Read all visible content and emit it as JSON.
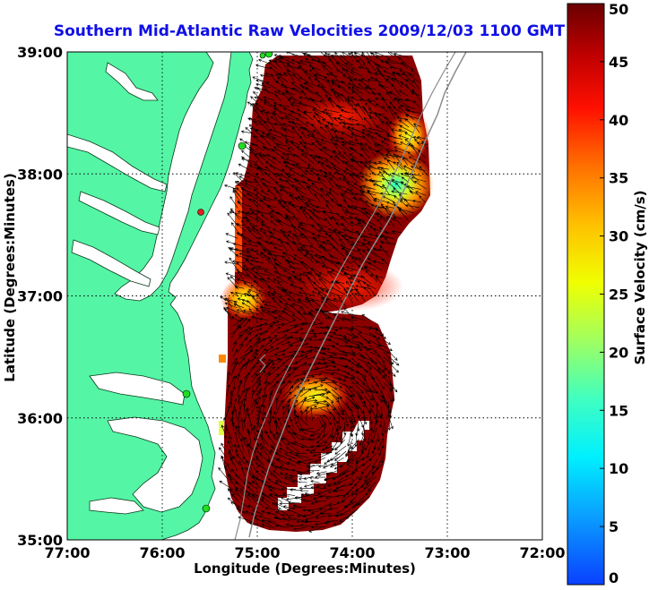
{
  "chart_data": {
    "type": "heatmap",
    "title": "Southern Mid-Atlantic Raw Velocities 2009/12/03 1100 GMT",
    "xlabel": "Longitude (Degrees:Minutes)",
    "ylabel": "Latitude (Degrees:Minutes)",
    "xlim": [
      -77,
      -72
    ],
    "ylim": [
      35,
      39
    ],
    "x_ticks": [
      {
        "value": -77,
        "label": "77:00"
      },
      {
        "value": -76,
        "label": "76:00"
      },
      {
        "value": -75,
        "label": "75:00"
      },
      {
        "value": -74,
        "label": "74:00"
      },
      {
        "value": -73,
        "label": "73:00"
      },
      {
        "value": -72,
        "label": "72:00"
      }
    ],
    "y_ticks": [
      {
        "value": 35,
        "label": "35:00"
      },
      {
        "value": 36,
        "label": "36:00"
      },
      {
        "value": 37,
        "label": "37:00"
      },
      {
        "value": 38,
        "label": "38:00"
      },
      {
        "value": 39,
        "label": "39:00"
      }
    ],
    "grid": true,
    "colorbar": {
      "label": "Surface Velocity (cm/s)",
      "min": 0,
      "max": 50,
      "ticks": [
        "0",
        "5",
        "10",
        "15",
        "20",
        "25",
        "30",
        "35",
        "40",
        "45",
        "50"
      ]
    },
    "colors": {
      "land": "#55f5a6",
      "ocean": "#ffffff",
      "title": "#1010e6",
      "arrow": "#000000",
      "stations": "#22dd22",
      "station_alt": "#dd2222",
      "high_speed": "#7a0000"
    }
  }
}
